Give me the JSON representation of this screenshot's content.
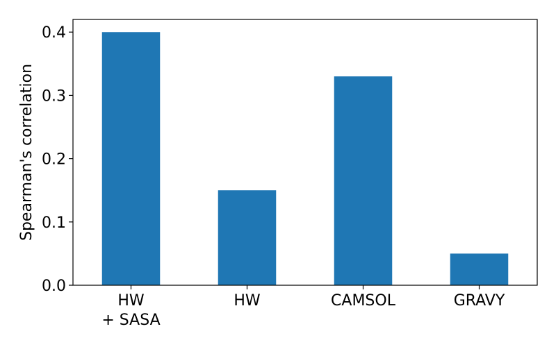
{
  "chart_data": {
    "type": "bar",
    "categories": [
      [
        "HW",
        "+ SASA"
      ],
      [
        "HW"
      ],
      [
        "CAMSOL"
      ],
      [
        "GRAVY"
      ]
    ],
    "values": [
      0.4,
      0.15,
      0.33,
      0.05
    ],
    "title": "",
    "xlabel": "",
    "ylabel": "Spearman's correlation",
    "ylim": [
      0.0,
      0.42
    ],
    "yticks": [
      0.0,
      0.1,
      0.2,
      0.3,
      0.4
    ],
    "ytick_labels": [
      "0.0",
      "0.1",
      "0.2",
      "0.3",
      "0.4"
    ],
    "bar_color": "#1f77b4",
    "grid": false,
    "legend": "none"
  }
}
